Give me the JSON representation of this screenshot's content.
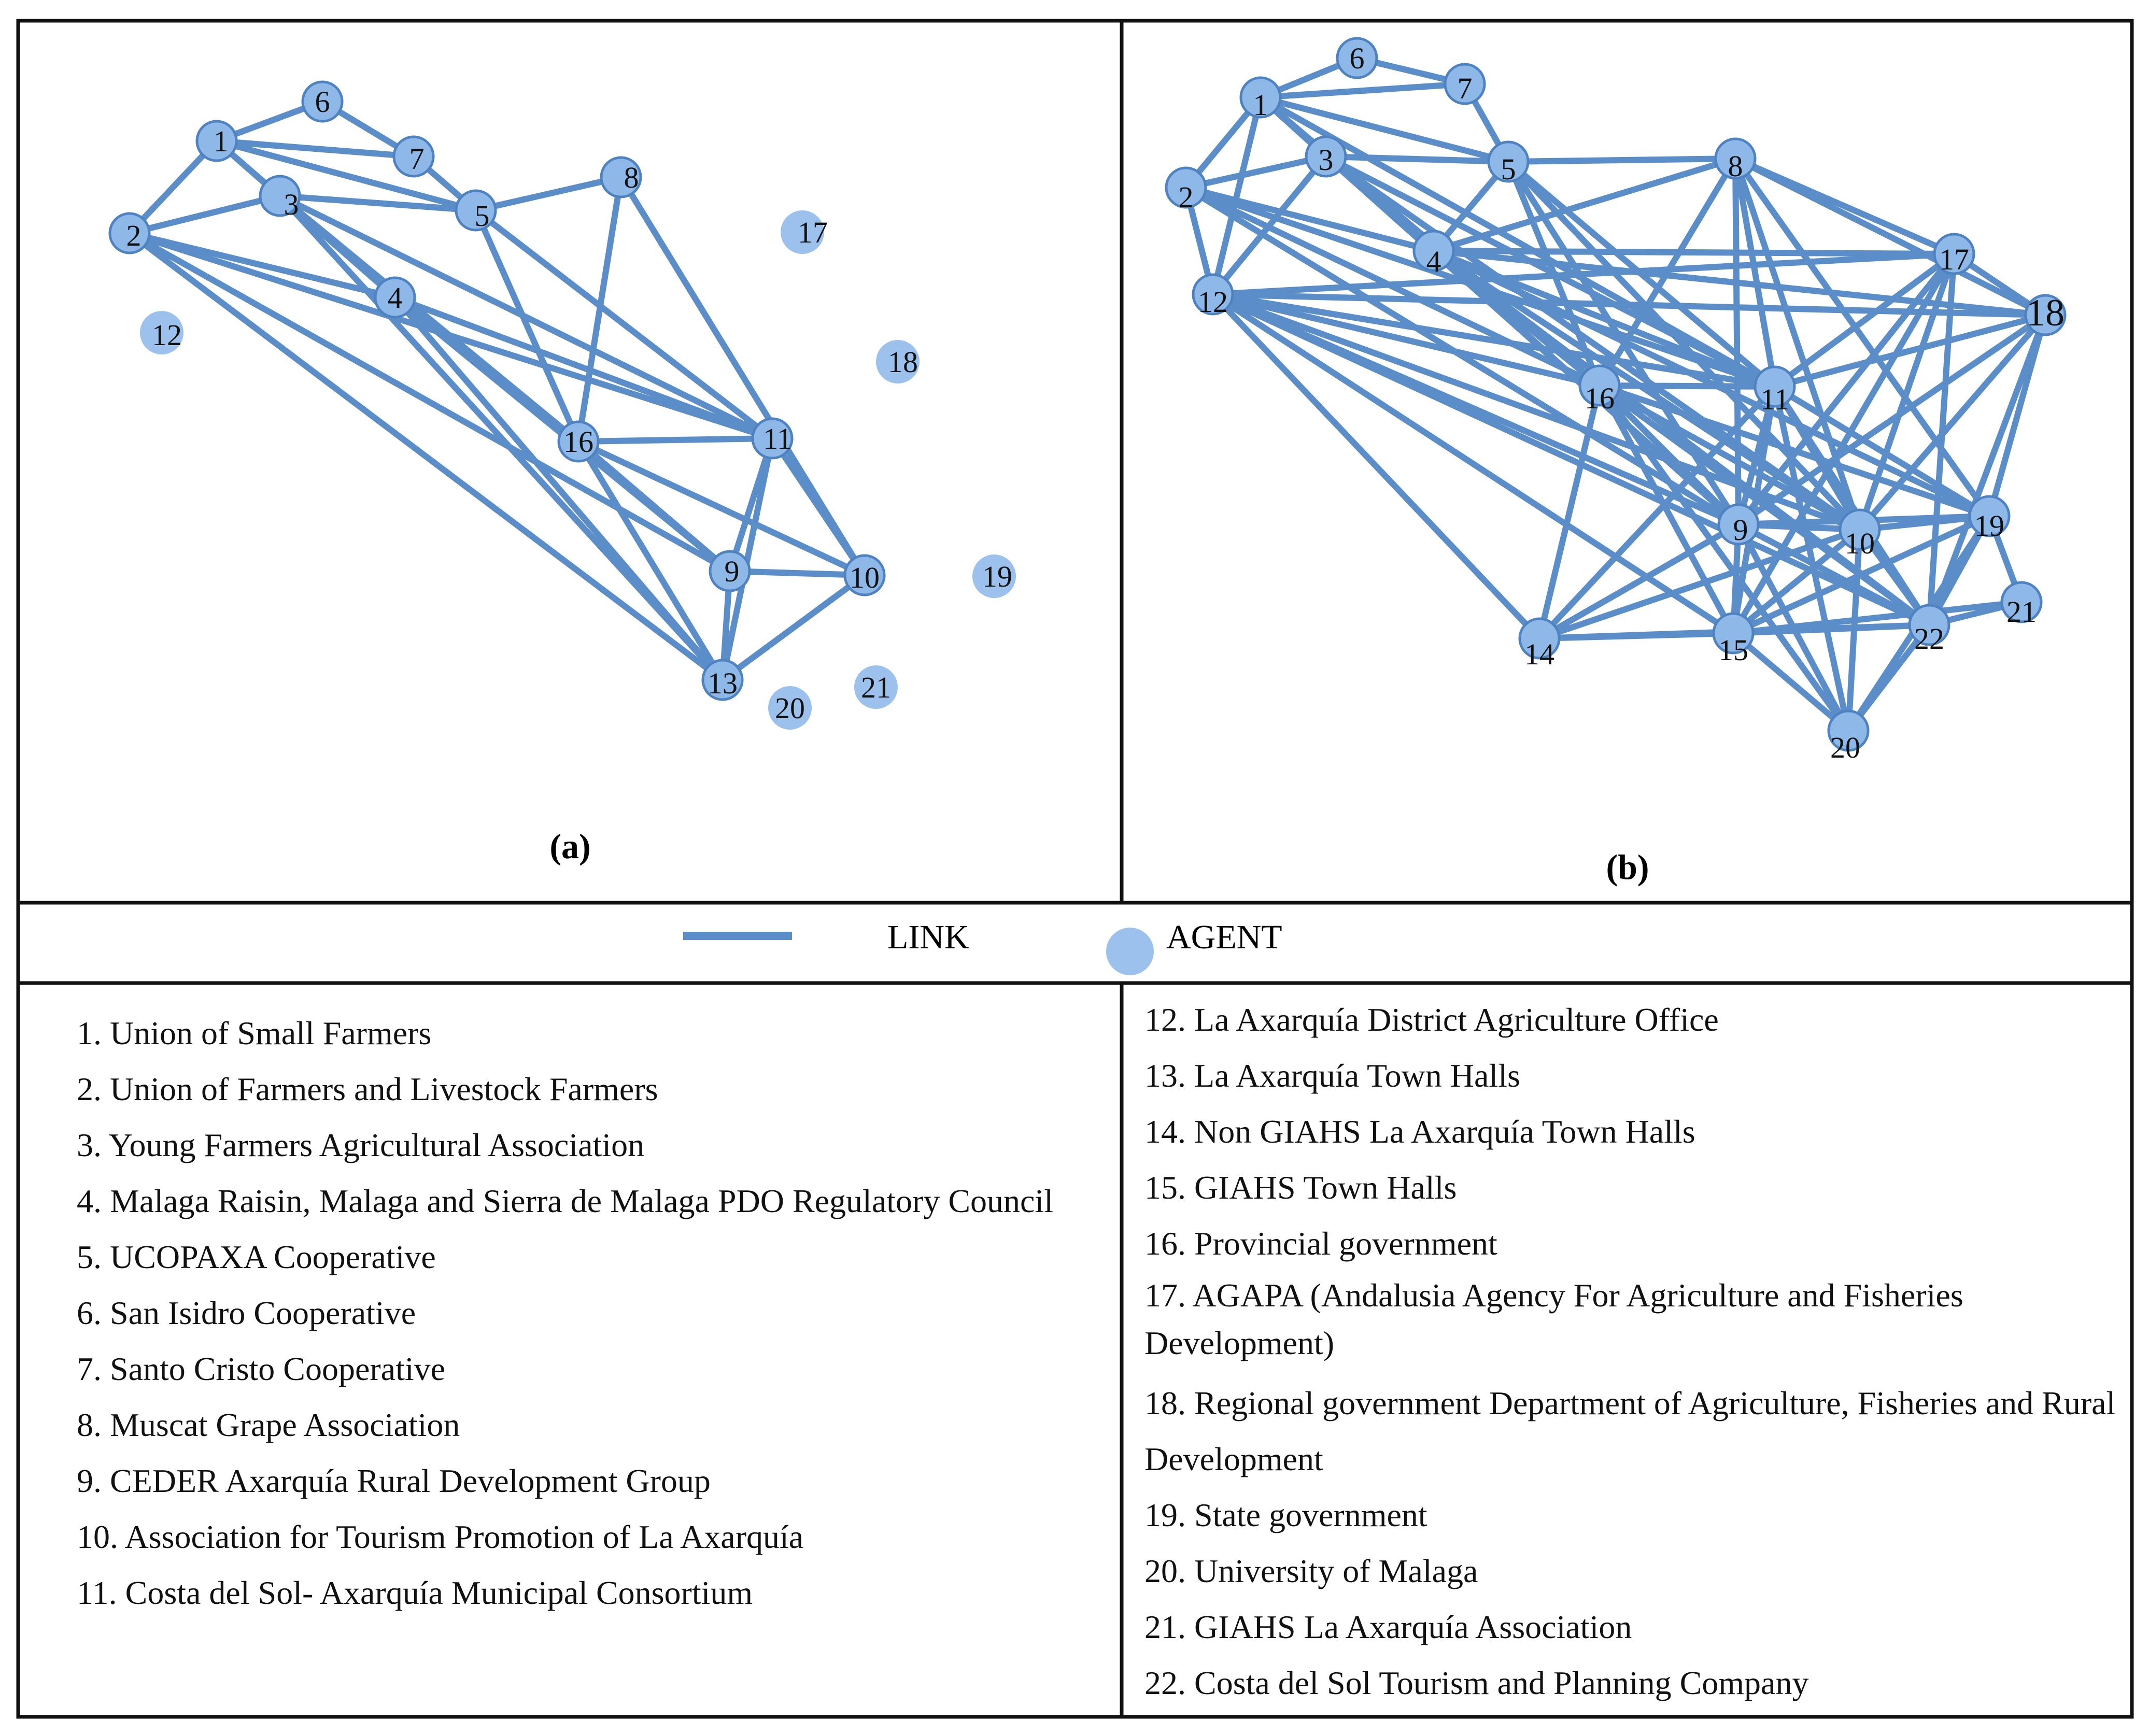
{
  "legend": {
    "link_label": "LINK",
    "agent_label": "AGENT"
  },
  "colors": {
    "link": "#5b8ec9",
    "node": "#8eb8e8",
    "node_edge": "#4f82c0",
    "agent": "#9cc1ec"
  },
  "panels": [
    {
      "id": "a",
      "label": "(a)",
      "nodes": [
        "1",
        "2",
        "3",
        "4",
        "5",
        "6",
        "7",
        "8",
        "9",
        "10",
        "11",
        "12",
        "13",
        "16",
        "17",
        "18",
        "19",
        "20",
        "21"
      ],
      "isolated": [
        "12",
        "17",
        "18",
        "19",
        "20",
        "21"
      ],
      "edges": [
        [
          "1",
          "6"
        ],
        [
          "6",
          "7"
        ],
        [
          "1",
          "7"
        ],
        [
          "7",
          "5"
        ],
        [
          "1",
          "2"
        ],
        [
          "1",
          "3"
        ],
        [
          "1",
          "5"
        ],
        [
          "1",
          "4"
        ],
        [
          "2",
          "3"
        ],
        [
          "2",
          "4"
        ],
        [
          "2",
          "11"
        ],
        [
          "2",
          "13"
        ],
        [
          "2",
          "9"
        ],
        [
          "3",
          "4"
        ],
        [
          "3",
          "5"
        ],
        [
          "3",
          "16"
        ],
        [
          "3",
          "11"
        ],
        [
          "3",
          "9"
        ],
        [
          "3",
          "13"
        ],
        [
          "4",
          "16"
        ],
        [
          "4",
          "11"
        ],
        [
          "4",
          "9"
        ],
        [
          "4",
          "13"
        ],
        [
          "5",
          "8"
        ],
        [
          "5",
          "16"
        ],
        [
          "5",
          "11"
        ],
        [
          "8",
          "16"
        ],
        [
          "8",
          "10"
        ],
        [
          "16",
          "11"
        ],
        [
          "16",
          "9"
        ],
        [
          "16",
          "10"
        ],
        [
          "16",
          "13"
        ],
        [
          "11",
          "9"
        ],
        [
          "11",
          "10"
        ],
        [
          "11",
          "13"
        ],
        [
          "9",
          "10"
        ],
        [
          "9",
          "13"
        ],
        [
          "10",
          "13"
        ]
      ]
    },
    {
      "id": "b",
      "label": "(b)",
      "nodes": [
        "1",
        "2",
        "3",
        "4",
        "5",
        "6",
        "7",
        "8",
        "9",
        "10",
        "11",
        "12",
        "14",
        "15",
        "16",
        "17",
        "18",
        "19",
        "20",
        "21",
        "22"
      ],
      "isolated": [],
      "edges": [
        [
          "1",
          "6"
        ],
        [
          "6",
          "7"
        ],
        [
          "1",
          "7"
        ],
        [
          "7",
          "5"
        ],
        [
          "1",
          "2"
        ],
        [
          "1",
          "3"
        ],
        [
          "1",
          "12"
        ],
        [
          "1",
          "4"
        ],
        [
          "1",
          "5"
        ],
        [
          "1",
          "16"
        ],
        [
          "1",
          "11"
        ],
        [
          "2",
          "3"
        ],
        [
          "2",
          "12"
        ],
        [
          "2",
          "4"
        ],
        [
          "2",
          "16"
        ],
        [
          "2",
          "11"
        ],
        [
          "2",
          "9"
        ],
        [
          "3",
          "4"
        ],
        [
          "3",
          "12"
        ],
        [
          "3",
          "16"
        ],
        [
          "3",
          "11"
        ],
        [
          "3",
          "9"
        ],
        [
          "3",
          "10"
        ],
        [
          "3",
          "5"
        ],
        [
          "4",
          "5"
        ],
        [
          "4",
          "8"
        ],
        [
          "4",
          "17"
        ],
        [
          "4",
          "18"
        ],
        [
          "4",
          "16"
        ],
        [
          "4",
          "11"
        ],
        [
          "4",
          "9"
        ],
        [
          "4",
          "10"
        ],
        [
          "4",
          "19"
        ],
        [
          "4",
          "22"
        ],
        [
          "5",
          "8"
        ],
        [
          "5",
          "16"
        ],
        [
          "5",
          "11"
        ],
        [
          "5",
          "9"
        ],
        [
          "5",
          "10"
        ],
        [
          "8",
          "17"
        ],
        [
          "8",
          "18"
        ],
        [
          "8",
          "11"
        ],
        [
          "8",
          "16"
        ],
        [
          "8",
          "9"
        ],
        [
          "8",
          "10"
        ],
        [
          "8",
          "19"
        ],
        [
          "17",
          "18"
        ],
        [
          "17",
          "11"
        ],
        [
          "17",
          "9"
        ],
        [
          "17",
          "10"
        ],
        [
          "17",
          "22"
        ],
        [
          "17",
          "15"
        ],
        [
          "17",
          "12"
        ],
        [
          "18",
          "11"
        ],
        [
          "18",
          "10"
        ],
        [
          "18",
          "19"
        ],
        [
          "18",
          "22"
        ],
        [
          "18",
          "9"
        ],
        [
          "18",
          "12"
        ],
        [
          "12",
          "16"
        ],
        [
          "12",
          "11"
        ],
        [
          "12",
          "14"
        ],
        [
          "12",
          "15"
        ],
        [
          "12",
          "9"
        ],
        [
          "12",
          "10"
        ],
        [
          "12",
          "22"
        ],
        [
          "16",
          "11"
        ],
        [
          "16",
          "14"
        ],
        [
          "16",
          "15"
        ],
        [
          "16",
          "9"
        ],
        [
          "16",
          "10"
        ],
        [
          "16",
          "19"
        ],
        [
          "16",
          "22"
        ],
        [
          "16",
          "20"
        ],
        [
          "11",
          "9"
        ],
        [
          "11",
          "10"
        ],
        [
          "11",
          "19"
        ],
        [
          "11",
          "15"
        ],
        [
          "11",
          "22"
        ],
        [
          "11",
          "20"
        ],
        [
          "11",
          "14"
        ],
        [
          "9",
          "10"
        ],
        [
          "9",
          "19"
        ],
        [
          "9",
          "14"
        ],
        [
          "9",
          "15"
        ],
        [
          "9",
          "22"
        ],
        [
          "9",
          "20"
        ],
        [
          "10",
          "19"
        ],
        [
          "10",
          "15"
        ],
        [
          "10",
          "22"
        ],
        [
          "10",
          "20"
        ],
        [
          "10",
          "14"
        ],
        [
          "19",
          "22"
        ],
        [
          "19",
          "15"
        ],
        [
          "19",
          "20"
        ],
        [
          "19",
          "21"
        ],
        [
          "14",
          "15"
        ],
        [
          "14",
          "22"
        ],
        [
          "15",
          "22"
        ],
        [
          "15",
          "20"
        ],
        [
          "22",
          "21"
        ],
        [
          "22",
          "20"
        ],
        [
          "21",
          "15"
        ]
      ]
    }
  ],
  "agents_left": [
    "1. Union of Small Farmers",
    "2. Union of Farmers and Livestock Farmers",
    "3. Young Farmers Agricultural Association",
    "4. Malaga Raisin, Malaga and Sierra de Malaga PDO Regulatory Council",
    "5. UCOPAXA Cooperative",
    "6. San Isidro Cooperative",
    "7. Santo Cristo Cooperative",
    "8. Muscat Grape Association",
    "9. CEDER Axarquía Rural Development Group",
    "10. Association for Tourism Promotion of La Axarquía",
    "11. Costa del Sol- Axarquía Municipal Consortium"
  ],
  "agents_right": [
    "12. La Axarquía District Agriculture Office",
    "13. La Axarquía Town Halls",
    "14. Non GIAHS La Axarquía Town Halls",
    "15. GIAHS Town Halls",
    "16. Provincial government",
    "17. AGAPA (Andalusia Agency For Agriculture and Fisheries Development)",
    "18. Regional government Department of Agriculture, Fisheries and Rural Development",
    "19. State government",
    "20. University of Malaga",
    "21. GIAHS La Axarquía Association",
    "22. Costa del Sol Tourism and Planning Company"
  ]
}
